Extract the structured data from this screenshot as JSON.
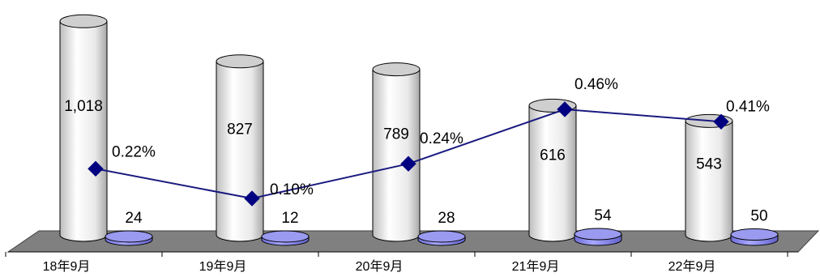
{
  "chart_data": {
    "type": "bar",
    "title": "",
    "categories": [
      "18年9月",
      "19年9月",
      "20年9月",
      "21年9月",
      "22年9月"
    ],
    "series": [
      {
        "values": [
          1018,
          827,
          789,
          616,
          543
        ],
        "labels": [
          "1,018",
          "827",
          "789",
          "616",
          "543"
        ],
        "render": "cylinder"
      },
      {
        "values": [
          24,
          12,
          28,
          54,
          50
        ],
        "labels": [
          "24",
          "12",
          "28",
          "54",
          "50"
        ],
        "render": "cylinder"
      },
      {
        "values": [
          0.22,
          0.1,
          0.24,
          0.46,
          0.41
        ],
        "labels": [
          "0.22%",
          "0.10%",
          "0.24%",
          "0.46%",
          "0.41%"
        ],
        "render": "line",
        "unit": "%"
      }
    ],
    "ylim_bars": [
      0,
      1050
    ],
    "ylim_line": [
      -0.9,
      0.8
    ],
    "grid": false,
    "legend": "none",
    "colors": {
      "cylinder_main": "#e6e6e6",
      "cylinder_small": "#8c8cf0",
      "line": "#1a1a80",
      "marker": "#000080",
      "floor": "#808080"
    }
  }
}
